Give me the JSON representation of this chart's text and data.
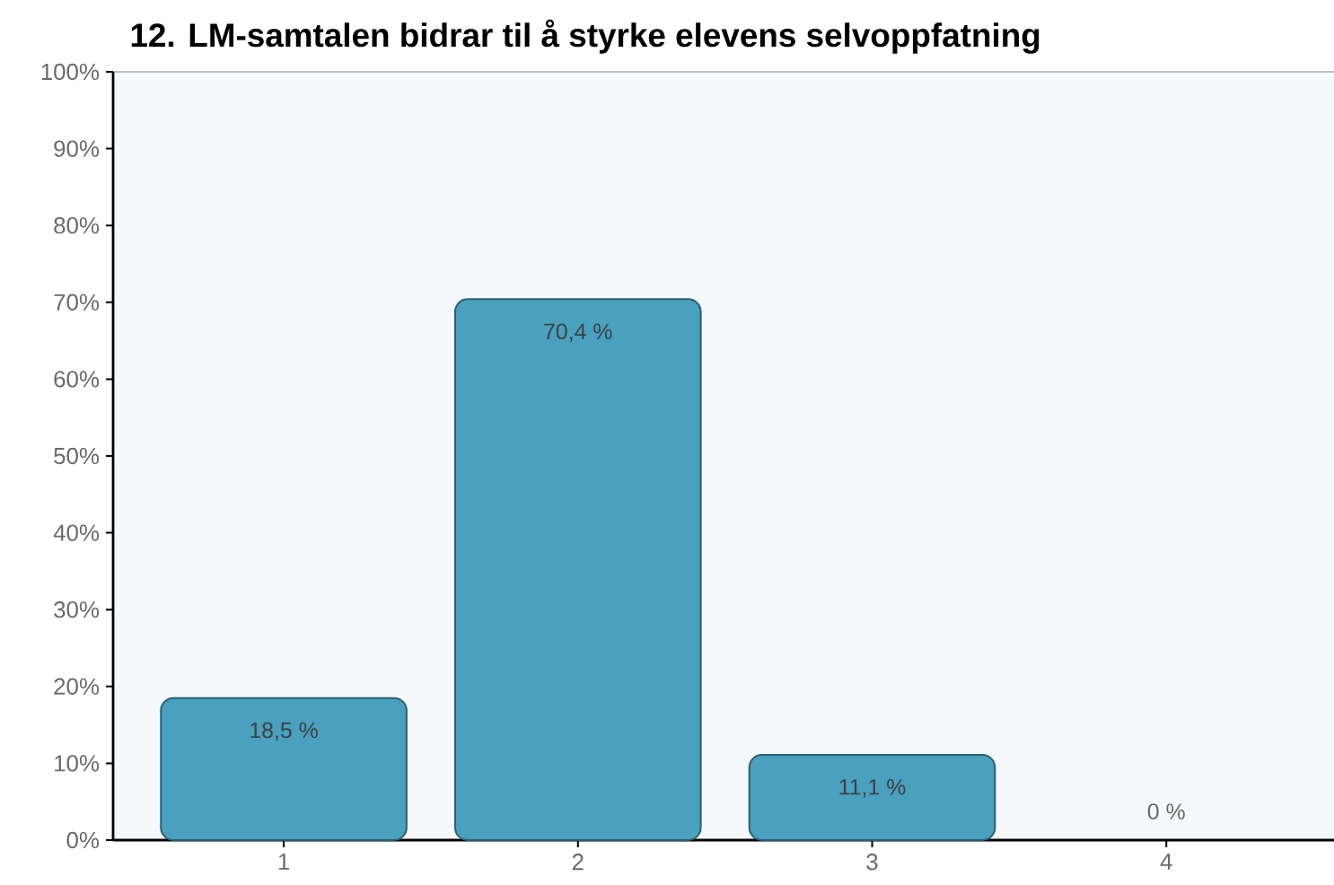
{
  "chart_data": {
    "type": "bar",
    "title": "12. LM-samtalen bidrar til å styrke elevens selvoppfatning",
    "categories": [
      "1",
      "2",
      "3",
      "4"
    ],
    "values": [
      18.5,
      70.4,
      11.1,
      0
    ],
    "value_labels": [
      "18,5 %",
      "70,4 %",
      "11,1 %",
      "0 %"
    ],
    "color": "#4aa0bf",
    "ylim": [
      0,
      100
    ],
    "yticks": [
      {
        "value": 0,
        "label": "0%"
      },
      {
        "value": 10,
        "label": "10%"
      },
      {
        "value": 20,
        "label": "20%"
      },
      {
        "value": 30,
        "label": "30%"
      },
      {
        "value": 40,
        "label": "40%"
      },
      {
        "value": 50,
        "label": "50%"
      },
      {
        "value": 60,
        "label": "60%"
      },
      {
        "value": 70,
        "label": "70%"
      },
      {
        "value": 80,
        "label": "80%"
      },
      {
        "value": 90,
        "label": "90%"
      },
      {
        "value": 100,
        "label": "100%"
      }
    ]
  }
}
